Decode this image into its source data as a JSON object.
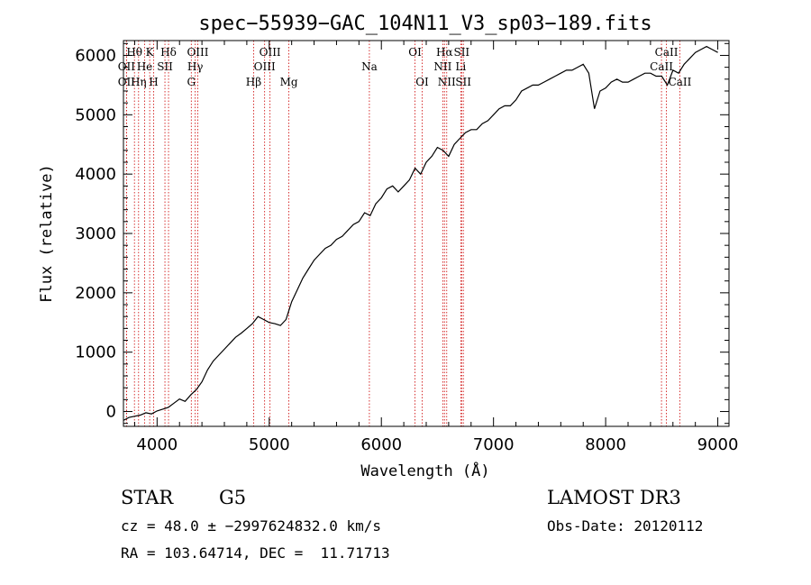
{
  "chart_data": {
    "type": "line",
    "title": "spec−55939−GAC_104N11_V3_sp03−189.fits",
    "xlabel": "Wavelength (Å)",
    "ylabel": "Flux (relative)",
    "xlim": [
      3700,
      9100
    ],
    "ylim": [
      -250,
      6250
    ],
    "xticks": [
      4000,
      5000,
      6000,
      7000,
      8000,
      9000
    ],
    "yticks": [
      0,
      1000,
      2000,
      3000,
      4000,
      5000,
      6000
    ],
    "grid": false,
    "series": [
      {
        "name": "flux",
        "color": "#000000",
        "x": [
          3700,
          3750,
          3800,
          3850,
          3900,
          3950,
          4000,
          4050,
          4100,
          4150,
          4200,
          4250,
          4300,
          4350,
          4400,
          4450,
          4500,
          4550,
          4600,
          4650,
          4700,
          4750,
          4800,
          4850,
          4900,
          4950,
          5000,
          5050,
          5100,
          5150,
          5200,
          5250,
          5300,
          5350,
          5400,
          5450,
          5500,
          5550,
          5600,
          5650,
          5700,
          5750,
          5800,
          5850,
          5900,
          5950,
          6000,
          6050,
          6100,
          6150,
          6200,
          6250,
          6300,
          6350,
          6400,
          6450,
          6500,
          6550,
          6600,
          6650,
          6700,
          6750,
          6800,
          6850,
          6900,
          6950,
          7000,
          7050,
          7100,
          7150,
          7200,
          7250,
          7300,
          7350,
          7400,
          7450,
          7500,
          7550,
          7600,
          7650,
          7700,
          7750,
          7800,
          7850,
          7900,
          7950,
          8000,
          8050,
          8100,
          8150,
          8200,
          8250,
          8300,
          8350,
          8400,
          8450,
          8500,
          8550,
          8600,
          8650,
          8700,
          8750,
          8800,
          8850,
          8900,
          8950,
          9000
        ],
        "values": [
          -150,
          -100,
          -80,
          -60,
          -20,
          -40,
          10,
          40,
          70,
          140,
          210,
          170,
          280,
          370,
          500,
          700,
          850,
          950,
          1050,
          1150,
          1250,
          1320,
          1400,
          1480,
          1600,
          1550,
          1500,
          1480,
          1450,
          1550,
          1850,
          2050,
          2250,
          2400,
          2550,
          2650,
          2750,
          2800,
          2900,
          2950,
          3050,
          3150,
          3200,
          3350,
          3300,
          3500,
          3600,
          3750,
          3800,
          3700,
          3800,
          3900,
          4100,
          4000,
          4200,
          4300,
          4450,
          4400,
          4300,
          4500,
          4600,
          4700,
          4750,
          4750,
          4850,
          4900,
          5000,
          5100,
          5150,
          5150,
          5250,
          5400,
          5450,
          5500,
          5500,
          5550,
          5600,
          5650,
          5700,
          5750,
          5750,
          5800,
          5850,
          5700,
          5100,
          5400,
          5450,
          5550,
          5600,
          5550,
          5550,
          5600,
          5650,
          5700,
          5700,
          5650,
          5650,
          5500,
          5750,
          5700,
          5850,
          5950,
          6050,
          6100,
          6150,
          6100,
          6050
        ]
      }
    ],
    "spectral_lines": [
      {
        "label": "Hθ",
        "x": 3798,
        "row": 1
      },
      {
        "label": "OII",
        "x": 3727,
        "row": 2
      },
      {
        "label": "OII",
        "x": 3727,
        "row": 3
      },
      {
        "label": "He",
        "x": 3889,
        "row": 2
      },
      {
        "label": "Hη",
        "x": 3835,
        "row": 3
      },
      {
        "label": "K",
        "x": 3934,
        "row": 1
      },
      {
        "label": "SII",
        "x": 4070,
        "row": 2
      },
      {
        "label": "H",
        "x": 3969,
        "row": 3
      },
      {
        "label": "Hδ",
        "x": 4102,
        "row": 1
      },
      {
        "label": "OIII",
        "x": 4363,
        "row": 1
      },
      {
        "label": "Hγ",
        "x": 4340,
        "row": 2
      },
      {
        "label": "G",
        "x": 4305,
        "row": 3
      },
      {
        "label": "OIII",
        "x": 5007,
        "row": 1
      },
      {
        "label": "OIII",
        "x": 4959,
        "row": 2
      },
      {
        "label": "Hβ",
        "x": 4861,
        "row": 3
      },
      {
        "label": "Mg",
        "x": 5175,
        "row": 3
      },
      {
        "label": "Na",
        "x": 5893,
        "row": 2
      },
      {
        "label": "OI",
        "x": 6300,
        "row": 1
      },
      {
        "label": "OI",
        "x": 6364,
        "row": 3
      },
      {
        "label": "Hα",
        "x": 6563,
        "row": 1
      },
      {
        "label": "NII",
        "x": 6548,
        "row": 2
      },
      {
        "label": "NII",
        "x": 6583,
        "row": 3
      },
      {
        "label": "SII",
        "x": 6716,
        "row": 1
      },
      {
        "label": "Li",
        "x": 6708,
        "row": 2
      },
      {
        "label": "SII",
        "x": 6731,
        "row": 3
      },
      {
        "label": "CaII",
        "x": 8542,
        "row": 1
      },
      {
        "label": "CaII",
        "x": 8498,
        "row": 2
      },
      {
        "label": "CaII",
        "x": 8662,
        "row": 3
      }
    ],
    "line_color": "#cc0000"
  },
  "info": {
    "object_class": "STAR",
    "subclass": "G5",
    "survey": "LAMOST DR3",
    "cz": "cz = 48.0 ± −2997624832.0 km/s",
    "obs_date": "Obs-Date: 20120112",
    "coords": "RA = 103.64714, DEC =  11.71713"
  }
}
